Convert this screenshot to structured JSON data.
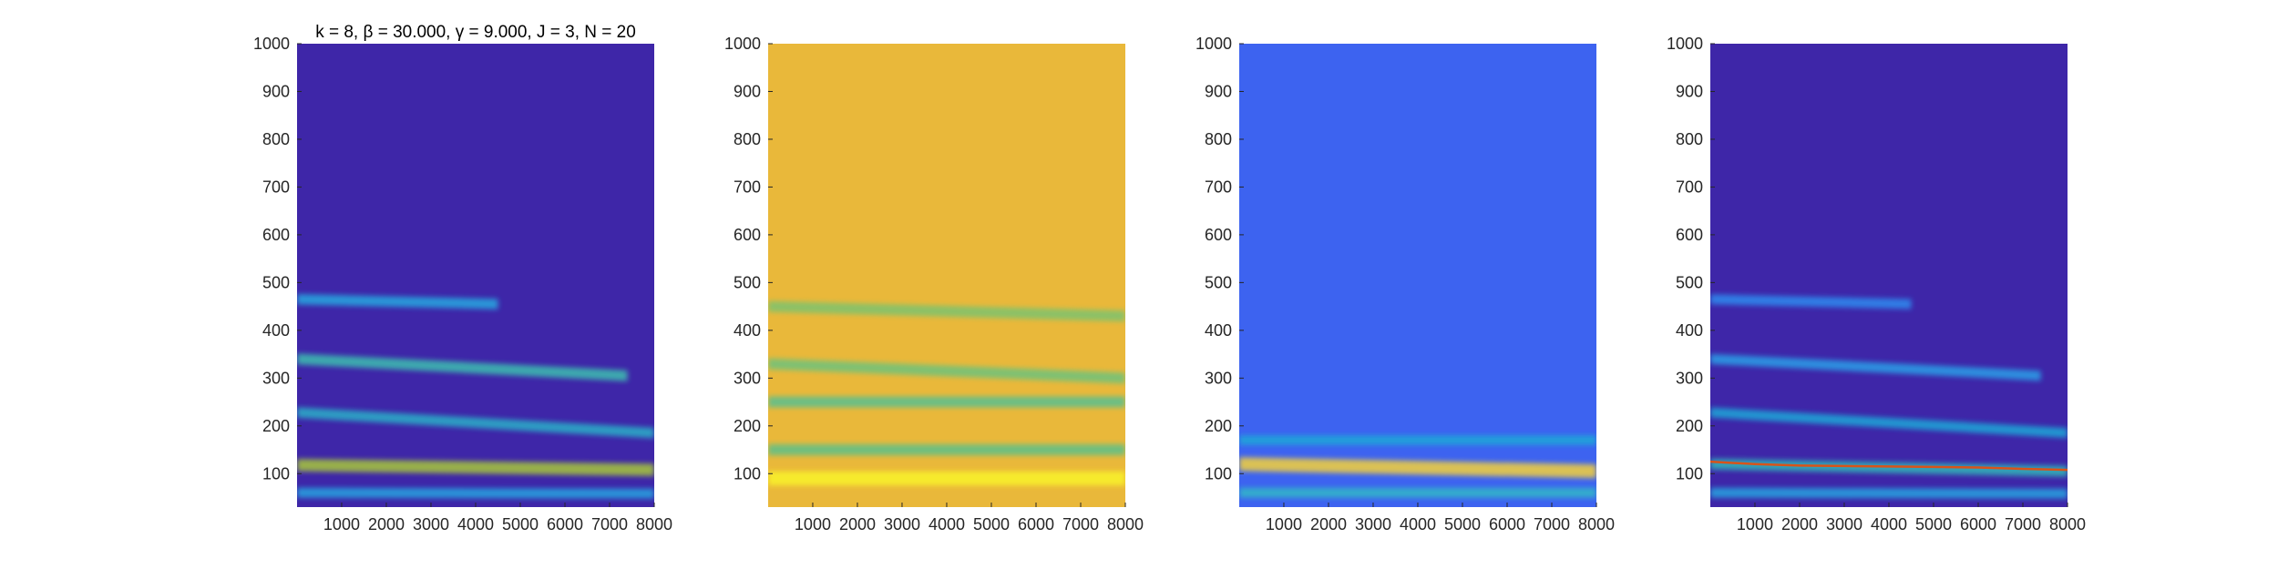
{
  "figure": {
    "colormap": "parula",
    "background": "#ffffff"
  },
  "chart_data": [
    {
      "type": "heatmap",
      "title": "k = 8, β = 30.000, γ = 9.000, J = 3, N = 20",
      "xlim": [
        1,
        8000
      ],
      "ylim": [
        30,
        1000
      ],
      "x_ticks": [
        "1000",
        "2000",
        "3000",
        "4000",
        "5000",
        "6000",
        "7000",
        "8000"
      ],
      "y_ticks": [
        "100",
        "200",
        "300",
        "400",
        "500",
        "600",
        "700",
        "800",
        "900",
        "1000"
      ],
      "xlabel": "",
      "ylabel": "",
      "grid": false,
      "background_color": "#3e26a8",
      "bands": [
        {
          "y_start": 465,
          "y_end": 455,
          "x_start": 0,
          "x_end": 4500,
          "level": 0.55,
          "color": "#26a8e0"
        },
        {
          "y_start": 340,
          "y_end": 305,
          "x_start": 0,
          "x_end": 7400,
          "level": 0.6,
          "color": "#3cbfb0"
        },
        {
          "y_start": 228,
          "y_end": 185,
          "x_start": 0,
          "x_end": 8000,
          "level": 0.55,
          "color": "#2bb0c8"
        },
        {
          "y_start": 118,
          "y_end": 108,
          "x_start": 0,
          "x_end": 8000,
          "level": 0.75,
          "color": "#a8c83a"
        },
        {
          "y_start": 60,
          "y_end": 58,
          "x_start": 0,
          "x_end": 8000,
          "level": 0.5,
          "color": "#28a4e0"
        }
      ]
    },
    {
      "type": "heatmap",
      "title": "",
      "xlim": [
        1,
        8000
      ],
      "ylim": [
        30,
        1000
      ],
      "x_ticks": [
        "1000",
        "2000",
        "3000",
        "4000",
        "5000",
        "6000",
        "7000",
        "8000"
      ],
      "y_ticks": [
        "100",
        "200",
        "300",
        "400",
        "500",
        "600",
        "700",
        "800",
        "900",
        "1000"
      ],
      "xlabel": "",
      "ylabel": "",
      "grid": false,
      "background_color": "#e9b83a",
      "bands": [
        {
          "y_start": 450,
          "y_end": 430,
          "x_start": 0,
          "x_end": 8000,
          "level": 0.6,
          "color": "#7cc36e"
        },
        {
          "y_start": 330,
          "y_end": 300,
          "x_start": 0,
          "x_end": 8000,
          "level": 0.6,
          "color": "#6dc27c"
        },
        {
          "y_start": 250,
          "y_end": 250,
          "x_start": 0,
          "x_end": 8000,
          "level": 0.6,
          "color": "#58bf90"
        },
        {
          "y_start": 150,
          "y_end": 150,
          "x_start": 0,
          "x_end": 8000,
          "level": 0.6,
          "color": "#5cbf8a"
        },
        {
          "y_start": 90,
          "y_end": 90,
          "x_start": 0,
          "x_end": 8000,
          "level": 0.95,
          "color": "#f9f32a"
        }
      ]
    },
    {
      "type": "heatmap",
      "title": "",
      "xlim": [
        1,
        8000
      ],
      "ylim": [
        30,
        1000
      ],
      "x_ticks": [
        "1000",
        "2000",
        "3000",
        "4000",
        "5000",
        "6000",
        "7000",
        "8000"
      ],
      "y_ticks": [
        "100",
        "200",
        "300",
        "400",
        "500",
        "600",
        "700",
        "800",
        "900",
        "1000"
      ],
      "xlabel": "",
      "ylabel": "",
      "grid": false,
      "background_color": "#3d63f0",
      "bands": [
        {
          "y_start": 170,
          "y_end": 170,
          "x_start": 0,
          "x_end": 8000,
          "level": 0.45,
          "color": "#1fa9d8"
        },
        {
          "y_start": 120,
          "y_end": 105,
          "x_start": 0,
          "x_end": 8000,
          "level": 0.9,
          "color": "#f6d23a"
        },
        {
          "y_start": 60,
          "y_end": 60,
          "x_start": 0,
          "x_end": 8000,
          "level": 0.5,
          "color": "#32b8c8"
        }
      ]
    },
    {
      "type": "heatmap",
      "title": "",
      "xlim": [
        1,
        8000
      ],
      "ylim": [
        30,
        1000
      ],
      "x_ticks": [
        "1000",
        "2000",
        "3000",
        "4000",
        "5000",
        "6000",
        "7000",
        "8000"
      ],
      "y_ticks": [
        "100",
        "200",
        "300",
        "400",
        "500",
        "600",
        "700",
        "800",
        "900",
        "1000"
      ],
      "xlabel": "",
      "ylabel": "",
      "grid": false,
      "background_color": "#3e26a8",
      "bands": [
        {
          "y_start": 465,
          "y_end": 455,
          "x_start": 0,
          "x_end": 4500,
          "level": 0.5,
          "color": "#2d8cf0"
        },
        {
          "y_start": 340,
          "y_end": 305,
          "x_start": 0,
          "x_end": 7400,
          "level": 0.5,
          "color": "#2aa0e8"
        },
        {
          "y_start": 228,
          "y_end": 185,
          "x_start": 0,
          "x_end": 8000,
          "level": 0.5,
          "color": "#1ea8d8"
        },
        {
          "y_start": 120,
          "y_end": 105,
          "x_start": 0,
          "x_end": 8000,
          "level": 0.6,
          "color": "#30b8b8"
        },
        {
          "y_start": 60,
          "y_end": 58,
          "x_start": 0,
          "x_end": 8000,
          "level": 0.5,
          "color": "#26a4e0"
        }
      ],
      "ridge_line": {
        "x": [
          1,
          1000,
          2000,
          3000,
          4000,
          5000,
          6000,
          7000,
          8000
        ],
        "y": [
          125,
          120,
          117,
          116,
          115,
          114,
          113,
          110,
          108
        ],
        "color": "#d95319"
      }
    }
  ]
}
